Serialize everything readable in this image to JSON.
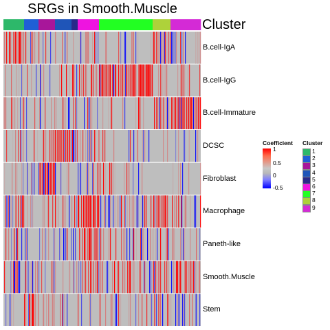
{
  "chart_data": {
    "type": "heatmap",
    "title": "SRGs in Smooth.Muscle",
    "annotation_label": "Cluster",
    "rows": [
      "B.cell-IgA",
      "B.cell-IgG",
      "B.cell-Immature",
      "DCSC",
      "Fibroblast",
      "Macrophage",
      "Paneth-like",
      "Smooth.Muscle",
      "Stem"
    ],
    "clusters": [
      {
        "name": "1",
        "color": "#2db86a",
        "fraction": 0.105
      },
      {
        "name": "2",
        "color": "#1f5fd6",
        "fraction": 0.072
      },
      {
        "name": "3",
        "color": "#a8169a",
        "fraction": 0.085
      },
      {
        "name": "4",
        "color": "#1f55b8",
        "fraction": 0.083
      },
      {
        "name": "5",
        "color": "#2a2a8a",
        "fraction": 0.032
      },
      {
        "name": "6",
        "color": "#ee14e0",
        "fraction": 0.108
      },
      {
        "name": "7",
        "color": "#22ff22",
        "fraction": 0.272
      },
      {
        "name": "8",
        "color": "#aed23a",
        "fraction": 0.088
      },
      {
        "name": "9",
        "color": "#d42ad6",
        "fraction": 0.155
      }
    ],
    "row_cluster_bias": [
      [
        0.55,
        0.1,
        0.05,
        0.05,
        0.05,
        0.1,
        0.05,
        0.5,
        0.05
      ],
      [
        0.05,
        0.05,
        0.05,
        0.05,
        0.05,
        0.2,
        0.6,
        0.1,
        0.05
      ],
      [
        0.1,
        0.05,
        0.05,
        0.1,
        0.1,
        0.05,
        0.05,
        0.2,
        0.7
      ],
      [
        0.05,
        0.05,
        0.05,
        0.65,
        0.4,
        0.1,
        0.05,
        0.05,
        0.05
      ],
      [
        0.0,
        0.0,
        0.65,
        0.0,
        0.0,
        0.05,
        0.05,
        0.0,
        0.0
      ],
      [
        0.2,
        0.1,
        0.1,
        0.1,
        0.1,
        0.6,
        0.1,
        0.6,
        0.1
      ],
      [
        0.1,
        0.05,
        0.05,
        0.05,
        0.05,
        0.5,
        0.1,
        0.2,
        0.05
      ],
      [
        0.2,
        0.2,
        0.1,
        0.1,
        0.1,
        0.2,
        0.2,
        0.4,
        0.2
      ],
      [
        0.05,
        0.4,
        0.05,
        0.05,
        0.05,
        0.05,
        0.05,
        0.3,
        0.05
      ]
    ],
    "color_scale": {
      "title": "Coefficient",
      "ticks": [
        "1",
        "0.5",
        "0",
        "-0.5"
      ],
      "low": "#0000ff",
      "mid": "#bebebe",
      "high": "#ff0000"
    },
    "cluster_legend_title": "Cluster"
  }
}
